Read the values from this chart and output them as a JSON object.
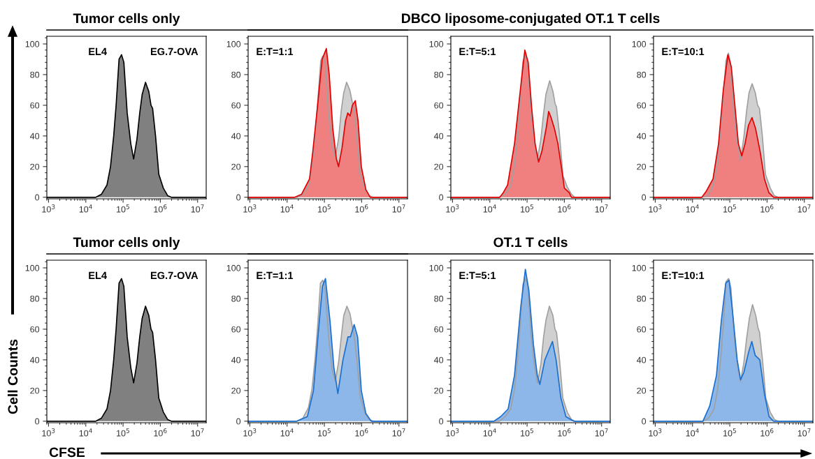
{
  "chart_data": [
    {
      "type": "area",
      "title": "Tumor cells only",
      "annotations": [
        "EL4",
        "EG.7-OVA"
      ],
      "log": "x",
      "xlim": [
        900,
        17000000
      ],
      "ylim": [
        -1,
        105
      ],
      "xticks": [
        {
          "value": 1000,
          "label": "10$^{3}$"
        },
        {
          "value": 10000,
          "label": "10$^{4}$"
        },
        {
          "value": 100000,
          "label": "10$^{5}$"
        },
        {
          "value": 1000000,
          "label": "10$^{6}$"
        },
        {
          "value": 10000000,
          "label": "10$^{7}$"
        }
      ],
      "yticks": [
        0,
        20,
        40,
        60,
        80,
        100
      ],
      "series": [
        {
          "color": "#000000",
          "x": [
            900,
            18600,
            26300,
            37000,
            46000,
            56000,
            65000,
            78000,
            91000,
            105000,
            129000,
            161000,
            192000,
            236000,
            280000,
            325000,
            400000,
            490000,
            562000,
            620000,
            744000,
            910000,
            1200000,
            1580000,
            1950000,
            17000000
          ],
          "values": [
            0,
            0,
            2,
            8,
            20,
            40,
            60,
            90,
            93,
            88,
            55,
            35,
            25,
            38,
            55,
            67,
            75,
            69,
            60,
            58,
            40,
            15,
            6,
            1,
            0,
            0
          ]
        }
      ]
    },
    {
      "type": "area",
      "annotations": [
        "E:T=1:1"
      ],
      "log": "x",
      "xlim": [
        900,
        17000000
      ],
      "ylim": [
        -1,
        105
      ],
      "xticks": [
        {
          "value": 1000,
          "label": "10$^{3}$"
        },
        {
          "value": 10000,
          "label": "10$^{4}$"
        },
        {
          "value": 100000,
          "label": "10$^{5}$"
        },
        {
          "value": 1000000,
          "label": "10$^{6}$"
        },
        {
          "value": 10000000,
          "label": "10$^{7}$"
        }
      ],
      "yticks": [
        0,
        20,
        40,
        60,
        80,
        100
      ],
      "series": [
        {
          "color": "#a0a0a0",
          "x": [
            900,
            19000,
            27000,
            38000,
            47000,
            57000,
            66000,
            80000,
            90000,
            106000,
            130000,
            160000,
            195000,
            240000,
            285000,
            330000,
            395000,
            480000,
            560000,
            630000,
            750000,
            900000,
            1250000,
            1600000,
            2000000,
            17000000
          ],
          "values": [
            0,
            0,
            2,
            8,
            22,
            42,
            62,
            89,
            92,
            87,
            54,
            34,
            26,
            38,
            57,
            68,
            75,
            70,
            62,
            57,
            39,
            16,
            5,
            1,
            0,
            0
          ]
        },
        {
          "color": "#e00000",
          "x": [
            900,
            16000,
            24500,
            40000,
            49000,
            66000,
            87000,
            113000,
            135000,
            168000,
            210000,
            240000,
            297000,
            370000,
            425000,
            490000,
            565000,
            675000,
            800000,
            980000,
            1300000,
            1700000,
            17000000
          ],
          "values": [
            0,
            0,
            2,
            12,
            30,
            60,
            90,
            97,
            80,
            45,
            25,
            20,
            32,
            50,
            55,
            53,
            60,
            63,
            50,
            20,
            5,
            0,
            0
          ]
        }
      ]
    },
    {
      "type": "area",
      "title": "DBCO liposome-conjugated OT.1 T cells",
      "annotations": [
        "E:T=5:1"
      ],
      "log": "x",
      "xlim": [
        900,
        17000000
      ],
      "ylim": [
        -1,
        105
      ],
      "xticks": [
        {
          "value": 1000,
          "label": "10$^{3}$"
        },
        {
          "value": 10000,
          "label": "10$^{4}$"
        },
        {
          "value": 100000,
          "label": "10$^{5}$"
        },
        {
          "value": 1000000,
          "label": "10$^{6}$"
        },
        {
          "value": 10000000,
          "label": "10$^{7}$"
        }
      ],
      "yticks": [
        0,
        20,
        40,
        60,
        80,
        100
      ],
      "series": [
        {
          "color": "#a0a0a0",
          "x": [
            900,
            18000,
            25500,
            36000,
            45000,
            55000,
            64000,
            77000,
            89000,
            103000,
            127000,
            158000,
            190000,
            232000,
            275000,
            320000,
            405000,
            495000,
            565000,
            615000,
            740000,
            920000,
            1180000,
            1550000,
            1900000,
            17000000
          ],
          "values": [
            0,
            0,
            2,
            7,
            19,
            39,
            59,
            88,
            93,
            89,
            57,
            36,
            25,
            37,
            54,
            67,
            76,
            69,
            61,
            59,
            41,
            14,
            7,
            2,
            0,
            0
          ]
        },
        {
          "color": "#e00000",
          "x": [
            900,
            18500,
            23000,
            30000,
            46000,
            66000,
            87000,
            107000,
            133000,
            164000,
            204000,
            250000,
            325000,
            380000,
            440000,
            540000,
            670000,
            830000,
            1000000,
            1350000,
            1550000,
            17000000
          ],
          "values": [
            0,
            0,
            3,
            8,
            35,
            70,
            96,
            88,
            58,
            35,
            23,
            30,
            45,
            56,
            52,
            45,
            35,
            20,
            6,
            3,
            0,
            0
          ]
        }
      ]
    },
    {
      "type": "area",
      "annotations": [
        "E:T=10:1"
      ],
      "log": "x",
      "xlim": [
        900,
        17000000
      ],
      "ylim": [
        -1,
        105
      ],
      "xticks": [
        {
          "value": 1000,
          "label": "10$^{3}$"
        },
        {
          "value": 10000,
          "label": "10$^{4}$"
        },
        {
          "value": 100000,
          "label": "10$^{5}$"
        },
        {
          "value": 1000000,
          "label": "10$^{6}$"
        },
        {
          "value": 10000000,
          "label": "10$^{7}$"
        }
      ],
      "yticks": [
        0,
        20,
        40,
        60,
        80,
        100
      ],
      "series": [
        {
          "color": "#a0a0a0",
          "x": [
            900,
            18400,
            26000,
            36500,
            45500,
            55500,
            64500,
            79000,
            92000,
            104000,
            128000,
            162000,
            193000,
            238000,
            282000,
            328000,
            398000,
            485000,
            558000,
            625000,
            748000,
            905000,
            1220000,
            1570000,
            1970000,
            17000000
          ],
          "values": [
            0,
            0,
            1,
            8,
            21,
            41,
            61,
            89,
            94,
            88,
            56,
            35,
            24,
            39,
            56,
            68,
            74,
            68,
            60,
            58,
            40,
            15,
            6,
            1,
            0,
            0
          ]
        },
        {
          "color": "#e00000",
          "x": [
            900,
            17800,
            23500,
            35500,
            50000,
            67000,
            89000,
            110000,
            137000,
            170000,
            210000,
            257000,
            318000,
            395000,
            490000,
            650000,
            850000,
            1120000,
            1500000,
            17000000
          ],
          "values": [
            0,
            0,
            4,
            12,
            35,
            70,
            93,
            85,
            60,
            35,
            27,
            35,
            47,
            52,
            45,
            30,
            12,
            3,
            0,
            0
          ]
        }
      ]
    },
    {
      "type": "area",
      "title": "Tumor cells only",
      "xlabel": "CFSE",
      "ylabel": "Cell Counts",
      "annotations": [
        "EL4",
        "EG.7-OVA"
      ],
      "log": "x",
      "xlim": [
        900,
        17000000
      ],
      "ylim": [
        -1,
        105
      ],
      "xticks": [
        {
          "value": 1000,
          "label": "10$^{3}$"
        },
        {
          "value": 10000,
          "label": "10$^{4}$"
        },
        {
          "value": 100000,
          "label": "10$^{5}$"
        },
        {
          "value": 1000000,
          "label": "10$^{6}$"
        },
        {
          "value": 10000000,
          "label": "10$^{7}$"
        }
      ],
      "yticks": [
        0,
        20,
        40,
        60,
        80,
        100
      ],
      "series": [
        {
          "color": "#000000",
          "x": [
            900,
            18600,
            26300,
            37000,
            46000,
            56000,
            65000,
            78000,
            91000,
            105000,
            129000,
            161000,
            192000,
            236000,
            280000,
            325000,
            400000,
            490000,
            562000,
            620000,
            744000,
            910000,
            1200000,
            1580000,
            1950000,
            17000000
          ],
          "values": [
            0,
            0,
            2,
            8,
            20,
            40,
            60,
            90,
            93,
            88,
            55,
            35,
            25,
            38,
            55,
            67,
            75,
            69,
            60,
            58,
            40,
            15,
            6,
            1,
            0,
            0
          ]
        }
      ]
    },
    {
      "type": "area",
      "annotations": [
        "E:T=1:1"
      ],
      "log": "x",
      "xlim": [
        900,
        17000000
      ],
      "ylim": [
        -1,
        105
      ],
      "xticks": [
        {
          "value": 1000,
          "label": "10$^{3}$"
        },
        {
          "value": 10000,
          "label": "10$^{4}$"
        },
        {
          "value": 100000,
          "label": "10$^{5}$"
        },
        {
          "value": 1000000,
          "label": "10$^{6}$"
        },
        {
          "value": 10000000,
          "label": "10$^{7}$"
        }
      ],
      "yticks": [
        0,
        20,
        40,
        60,
        80,
        100
      ],
      "series": [
        {
          "color": "#a0a0a0",
          "x": [
            900,
            18800,
            26600,
            37500,
            46500,
            56500,
            65500,
            78500,
            90500,
            105500,
            131000,
            163000,
            196000,
            242000,
            287000,
            332000,
            402000,
            488000,
            567000,
            622000,
            752000,
            915000,
            1230000,
            1620000,
            2050000,
            17000000
          ],
          "values": [
            0,
            0,
            2,
            9,
            21,
            41,
            61,
            90,
            92,
            86,
            54,
            33,
            26,
            39,
            56,
            69,
            75,
            70,
            61,
            57,
            39,
            16,
            5,
            1,
            0,
            0
          ]
        },
        {
          "color": "#1a6fd0",
          "x": [
            900,
            18000,
            35000,
            51000,
            70000,
            89000,
            107000,
            142000,
            180000,
            230000,
            315000,
            430000,
            500000,
            630000,
            780000,
            980000,
            1300000,
            1800000,
            17000000
          ],
          "values": [
            0,
            0,
            3,
            20,
            60,
            88,
            93,
            65,
            35,
            18,
            40,
            55,
            55,
            63,
            55,
            20,
            5,
            0,
            0
          ]
        }
      ]
    },
    {
      "type": "area",
      "title": "OT.1 T cells",
      "annotations": [
        "E:T=5:1"
      ],
      "log": "x",
      "xlim": [
        900,
        17000000
      ],
      "ylim": [
        -1,
        105
      ],
      "xticks": [
        {
          "value": 1000,
          "label": "10$^{3}$"
        },
        {
          "value": 10000,
          "label": "10$^{4}$"
        },
        {
          "value": 100000,
          "label": "10$^{5}$"
        },
        {
          "value": 1000000,
          "label": "10$^{6}$"
        },
        {
          "value": 10000000,
          "label": "10$^{7}$"
        }
      ],
      "yticks": [
        0,
        20,
        40,
        60,
        80,
        100
      ],
      "series": [
        {
          "color": "#a0a0a0",
          "x": [
            900,
            18200,
            25800,
            36300,
            45300,
            55300,
            64300,
            77500,
            89500,
            104500,
            128500,
            159000,
            191000,
            234000,
            278000,
            322000,
            397000,
            492000,
            560000,
            618000,
            742000,
            912000,
            1190000,
            1560000,
            1930000,
            17000000
          ],
          "values": [
            0,
            0,
            3,
            8,
            20,
            40,
            60,
            89,
            93,
            89,
            56,
            36,
            25,
            37,
            55,
            66,
            75,
            69,
            60,
            58,
            40,
            15,
            6,
            1,
            0,
            0
          ]
        },
        {
          "color": "#1a6fd0",
          "x": [
            900,
            13000,
            19500,
            31000,
            46000,
            68000,
            90000,
            112000,
            148000,
            188000,
            220000,
            300000,
            410000,
            480000,
            600000,
            810000,
            1100000,
            1780000,
            17000000
          ],
          "values": [
            0,
            0,
            3,
            8,
            30,
            75,
            99,
            85,
            50,
            30,
            24,
            40,
            48,
            52,
            40,
            15,
            3,
            0,
            0
          ]
        }
      ]
    },
    {
      "type": "area",
      "annotations": [
        "E:T=10:1"
      ],
      "log": "x",
      "xlim": [
        900,
        17000000
      ],
      "ylim": [
        -1,
        105
      ],
      "xticks": [
        {
          "value": 1000,
          "label": "10$^{3}$"
        },
        {
          "value": 10000,
          "label": "10$^{4}$"
        },
        {
          "value": 100000,
          "label": "10$^{5}$"
        },
        {
          "value": 1000000,
          "label": "10$^{6}$"
        },
        {
          "value": 10000000,
          "label": "10$^{7}$"
        }
      ],
      "yticks": [
        0,
        20,
        40,
        60,
        80,
        100
      ],
      "series": [
        {
          "color": "#a0a0a0",
          "x": [
            900,
            19200,
            26900,
            37800,
            46800,
            56800,
            65800,
            79500,
            93000,
            107000,
            132000,
            164000,
            194000,
            238000,
            283000,
            335000,
            408000,
            497000,
            570000,
            628000,
            755000,
            925000,
            1210000,
            1590000,
            1980000,
            17000000
          ],
          "values": [
            0,
            0,
            2,
            8,
            20,
            40,
            60,
            91,
            93,
            87,
            55,
            35,
            26,
            38,
            54,
            67,
            76,
            69,
            61,
            58,
            40,
            15,
            6,
            1,
            0,
            0
          ]
        },
        {
          "color": "#1a6fd0",
          "x": [
            900,
            19000,
            29000,
            44000,
            59000,
            78000,
            96000,
            118000,
            158000,
            195000,
            240000,
            320000,
            390000,
            480000,
            640000,
            850000,
            1130000,
            1500000,
            17000000
          ],
          "values": [
            0,
            0,
            10,
            30,
            65,
            90,
            92,
            72,
            40,
            27,
            32,
            45,
            52,
            43,
            40,
            18,
            3,
            0,
            0
          ]
        }
      ]
    }
  ]
}
